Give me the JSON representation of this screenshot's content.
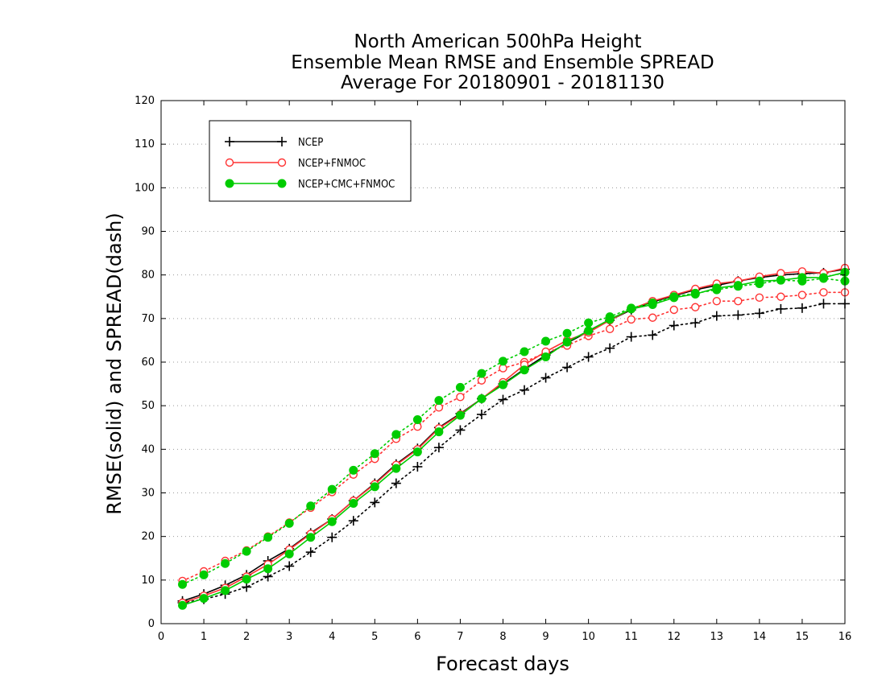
{
  "chart_data": {
    "type": "line",
    "title": [
      "North American 500hPa Height",
      "Ensemble Mean RMSE and Ensemble SPREAD",
      "Average For 20180901 - 20181130"
    ],
    "xlabel": "Forecast days",
    "ylabel": "RMSE(solid) and SPREAD(dash)",
    "xlim": [
      0,
      16
    ],
    "ylim": [
      0,
      120
    ],
    "xticks": [
      0,
      1,
      2,
      3,
      4,
      5,
      6,
      7,
      8,
      9,
      10,
      11,
      12,
      13,
      14,
      15,
      16
    ],
    "yticks": [
      0,
      10,
      20,
      30,
      40,
      50,
      60,
      70,
      80,
      90,
      100,
      110,
      120
    ],
    "grid": true,
    "legend_position": "top-left",
    "x": [
      0.5,
      1,
      1.5,
      2,
      2.5,
      3,
      3.5,
      4,
      4.5,
      5,
      5.5,
      6,
      6.5,
      7,
      7.5,
      8,
      8.5,
      9,
      9.5,
      10,
      10.5,
      11,
      11.5,
      12,
      12.5,
      13,
      13.5,
      14,
      14.5,
      15,
      15.5,
      16
    ],
    "series": [
      {
        "name": "NCEP",
        "color": "#000000",
        "marker": "plus",
        "rmse": [
          5.2,
          6.8,
          8.8,
          11.2,
          14.4,
          17.2,
          20.8,
          24.0,
          28.2,
          32.2,
          36.6,
          40.2,
          45.0,
          48.2,
          51.6,
          55.0,
          58.4,
          61.6,
          64.4,
          67.0,
          69.6,
          72.0,
          73.8,
          75.2,
          76.6,
          77.6,
          78.6,
          79.4,
          80.0,
          80.3,
          80.5,
          81.3
        ],
        "spread": [
          4.8,
          5.6,
          6.8,
          8.4,
          10.8,
          13.2,
          16.4,
          19.8,
          23.6,
          27.8,
          32.2,
          36.0,
          40.4,
          44.4,
          48.0,
          51.4,
          53.6,
          56.4,
          58.8,
          61.2,
          63.2,
          65.8,
          66.2,
          68.4,
          69.0,
          70.6,
          70.8,
          71.2,
          72.2,
          72.4,
          73.4,
          73.4
        ]
      },
      {
        "name": "NCEP+FNMOC",
        "color": "#ff3333",
        "marker": "open-circle",
        "rmse": [
          4.8,
          6.4,
          8.2,
          10.8,
          13.6,
          17.0,
          20.6,
          24.0,
          28.2,
          32.0,
          36.4,
          40.0,
          44.8,
          48.0,
          51.6,
          55.4,
          59.4,
          62.4,
          65.0,
          66.8,
          69.6,
          72.2,
          74.0,
          75.4,
          76.8,
          78.0,
          78.6,
          79.6,
          80.4,
          80.8,
          80.4,
          81.6
        ],
        "spread": [
          9.8,
          12.0,
          14.4,
          16.8,
          20.0,
          23.2,
          26.6,
          30.2,
          34.2,
          37.8,
          42.4,
          45.2,
          49.6,
          52.0,
          55.8,
          58.6,
          60.0,
          62.2,
          63.8,
          66.0,
          67.6,
          69.8,
          70.2,
          72.0,
          72.6,
          74.0,
          74.0,
          74.8,
          75.0,
          75.4,
          76.0,
          76.0
        ]
      },
      {
        "name": "NCEP+CMC+FNMOC",
        "color": "#00cc00",
        "marker": "filled-circle",
        "rmse": [
          4.2,
          5.8,
          7.6,
          10.2,
          12.6,
          16.0,
          19.8,
          23.4,
          27.6,
          31.4,
          35.6,
          39.4,
          44.0,
          47.8,
          51.6,
          54.8,
          58.2,
          61.2,
          64.6,
          67.2,
          69.8,
          72.2,
          73.2,
          74.8,
          75.6,
          77.0,
          77.6,
          78.6,
          78.8,
          79.4,
          79.4,
          80.6
        ],
        "spread": [
          9.0,
          11.2,
          13.8,
          16.6,
          19.8,
          23.0,
          27.0,
          30.8,
          35.2,
          39.0,
          43.4,
          46.8,
          51.2,
          54.2,
          57.4,
          60.2,
          62.4,
          64.8,
          66.6,
          69.0,
          70.4,
          72.4,
          73.6,
          75.0,
          75.8,
          76.6,
          77.4,
          78.0,
          78.8,
          78.6,
          79.2,
          78.6
        ]
      }
    ]
  }
}
